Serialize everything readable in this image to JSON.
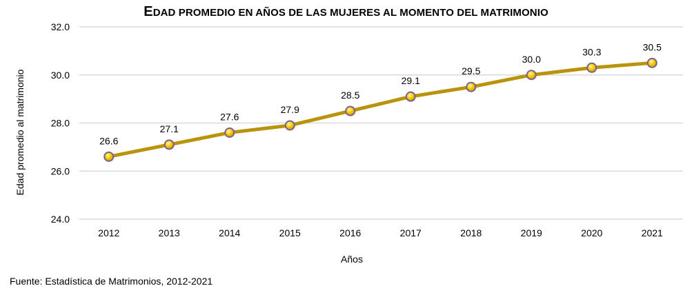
{
  "chart_data": {
    "type": "line",
    "title": "Edad promedio en años de las mujeres al momento del matrimonio",
    "title_first_letter": "E",
    "title_rest": "DAD PROMEDIO EN AÑOS DE LAS MUJERES AL MOMENTO DEL MATRIMONIO",
    "xlabel": "Años",
    "ylabel": "Edad promedio al matrimonio",
    "categories": [
      "2012",
      "2013",
      "2014",
      "2015",
      "2016",
      "2017",
      "2018",
      "2019",
      "2020",
      "2021"
    ],
    "values": [
      26.6,
      27.1,
      27.6,
      27.9,
      28.5,
      29.1,
      29.5,
      30.0,
      30.3,
      30.5
    ],
    "data_labels": [
      "26.6",
      "27.1",
      "27.6",
      "27.9",
      "28.5",
      "29.1",
      "29.5",
      "30.0",
      "30.3",
      "30.5"
    ],
    "ylim": [
      24,
      32
    ],
    "yticks": [
      24,
      26,
      28,
      30,
      32
    ],
    "ytick_labels": [
      "24.0",
      "26.0",
      "28.0",
      "30.0",
      "32.0"
    ],
    "grid": true,
    "legend": "none",
    "colors": {
      "line": "#b8930b",
      "marker_fill": "#f5c800",
      "marker_edge": "#7a6296",
      "grid": "#d9d9d9"
    }
  },
  "source": "Fuente: Estadística de Matrimonios, 2012-2021"
}
